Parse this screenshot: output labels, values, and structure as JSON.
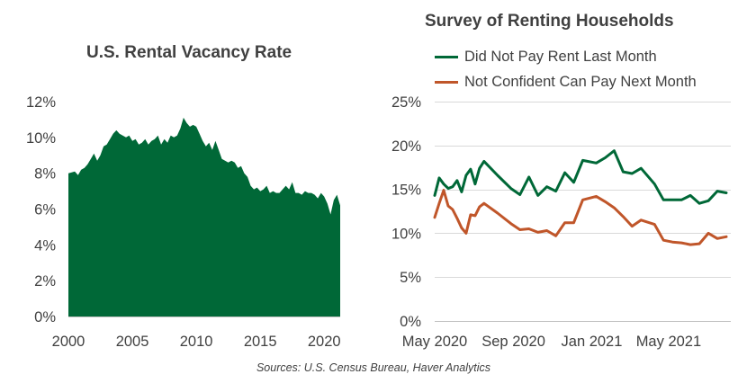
{
  "source": "Sources: U.S. Census Bureau, Haver Analytics",
  "chart_data": [
    {
      "type": "area",
      "title": "U.S. Rental Vacancy Rate",
      "color": "#006837",
      "ylim": [
        0,
        12
      ],
      "xlim": [
        2000,
        2021.25
      ],
      "y_ticks": [
        "0%",
        "2%",
        "4%",
        "6%",
        "8%",
        "10%",
        "12%"
      ],
      "x_ticks": [
        "2000",
        "2005",
        "2010",
        "2015",
        "2020"
      ],
      "grid": false,
      "x": [
        2000,
        2000.5,
        2000.75,
        2001,
        2001.25,
        2001.5,
        2001.75,
        2002,
        2002.25,
        2002.5,
        2002.75,
        2003,
        2003.25,
        2003.5,
        2003.75,
        2004,
        2004.25,
        2004.5,
        2004.75,
        2005,
        2005.25,
        2005.5,
        2005.75,
        2006,
        2006.25,
        2006.5,
        2006.75,
        2007,
        2007.25,
        2007.5,
        2007.75,
        2008,
        2008.25,
        2008.5,
        2008.75,
        2009,
        2009.25,
        2009.5,
        2009.75,
        2010,
        2010.25,
        2010.5,
        2010.75,
        2011,
        2011.25,
        2011.5,
        2011.75,
        2012,
        2012.25,
        2012.5,
        2012.75,
        2013,
        2013.25,
        2013.5,
        2013.75,
        2014,
        2014.25,
        2014.5,
        2014.75,
        2015,
        2015.25,
        2015.5,
        2015.75,
        2016,
        2016.25,
        2016.5,
        2016.75,
        2017,
        2017.25,
        2017.5,
        2017.75,
        2018,
        2018.25,
        2018.5,
        2018.75,
        2019,
        2019.25,
        2019.5,
        2019.75,
        2020,
        2020.25,
        2020.5,
        2020.75,
        2021,
        2021.25
      ],
      "values": [
        8.0,
        8.1,
        7.9,
        8.2,
        8.3,
        8.5,
        8.8,
        9.1,
        8.7,
        9.0,
        9.5,
        9.6,
        9.9,
        10.2,
        10.4,
        10.2,
        10.1,
        10.0,
        10.1,
        9.8,
        9.9,
        9.6,
        9.7,
        9.9,
        9.6,
        9.8,
        9.9,
        10.1,
        9.6,
        9.9,
        9.7,
        10.1,
        10.0,
        10.1,
        10.5,
        11.1,
        10.8,
        10.6,
        10.7,
        10.6,
        10.2,
        9.8,
        9.5,
        9.7,
        9.3,
        9.8,
        9.3,
        8.8,
        8.7,
        8.6,
        8.7,
        8.6,
        8.3,
        8.4,
        8.0,
        7.8,
        7.3,
        7.1,
        7.2,
        7.0,
        7.1,
        7.3,
        6.9,
        7.0,
        6.9,
        6.9,
        7.1,
        7.3,
        7.1,
        7.5,
        6.9,
        6.9,
        6.8,
        7.0,
        6.9,
        6.9,
        6.8,
        6.6,
        6.9,
        6.7,
        6.3,
        5.7,
        6.5,
        6.8,
        6.2
      ]
    },
    {
      "type": "line",
      "title": "Survey of Renting Households",
      "ylim": [
        0,
        25
      ],
      "y_ticks": [
        "0%",
        "5%",
        "10%",
        "15%",
        "20%",
        "25%"
      ],
      "x_ticks": [
        "May 2020",
        "Sep 2020",
        "Jan 2021",
        "May 2021"
      ],
      "x_tick_dates": [
        "2020-05-01",
        "2020-09-01",
        "2021-01-01",
        "2021-05-01"
      ],
      "xlim": [
        "2020-05-01",
        "2021-08-06"
      ],
      "grid": true,
      "x": [
        "2020-05-01",
        "2020-05-08",
        "2020-05-15",
        "2020-05-22",
        "2020-05-29",
        "2020-06-05",
        "2020-06-12",
        "2020-06-19",
        "2020-06-26",
        "2020-07-03",
        "2020-07-10",
        "2020-07-17",
        "2020-08-07",
        "2020-08-28",
        "2020-09-11",
        "2020-09-25",
        "2020-10-09",
        "2020-10-23",
        "2020-11-06",
        "2020-11-20",
        "2020-12-04",
        "2020-12-18",
        "2021-01-08",
        "2021-01-22",
        "2021-02-05",
        "2021-02-19",
        "2021-03-05",
        "2021-03-19",
        "2021-04-09",
        "2021-04-23",
        "2021-05-07",
        "2021-05-21",
        "2021-06-04",
        "2021-06-18",
        "2021-07-02",
        "2021-07-16",
        "2021-07-30"
      ],
      "series": [
        {
          "name": "Did Not Pay Rent Last Month",
          "color": "#006837",
          "values": [
            14.3,
            16.3,
            15.6,
            15.1,
            15.3,
            16.0,
            14.7,
            16.6,
            17.3,
            15.6,
            17.4,
            18.2,
            16.6,
            15.1,
            14.4,
            16.4,
            14.3,
            15.3,
            14.8,
            16.9,
            15.8,
            18.3,
            18.0,
            18.6,
            19.4,
            17.0,
            16.8,
            17.4,
            15.6,
            13.8,
            13.8,
            13.8,
            14.3,
            13.4,
            13.7,
            14.8,
            14.6
          ]
        },
        {
          "name": "Not Confident Can Pay Next Month",
          "color": "#c0562a",
          "values": [
            11.8,
            13.4,
            14.9,
            13.1,
            12.7,
            11.7,
            10.6,
            10.0,
            12.1,
            12.0,
            13.0,
            13.4,
            12.3,
            11.1,
            10.4,
            10.5,
            10.1,
            10.3,
            9.7,
            11.2,
            11.2,
            13.8,
            14.2,
            13.6,
            12.9,
            11.9,
            10.8,
            11.5,
            11.0,
            9.2,
            9.0,
            8.9,
            8.7,
            8.8,
            10.0,
            9.4,
            9.6
          ]
        }
      ]
    }
  ]
}
